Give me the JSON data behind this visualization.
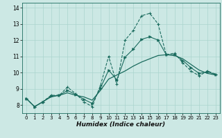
{
  "title": "",
  "xlabel": "Humidex (Indice chaleur)",
  "background_color": "#cce8e4",
  "line_color": "#1a6b5e",
  "grid_color": "#aad4ce",
  "xlim": [
    -0.5,
    23.5
  ],
  "ylim": [
    7.5,
    14.3
  ],
  "x_ticks": [
    0,
    1,
    2,
    3,
    4,
    5,
    6,
    7,
    8,
    9,
    10,
    11,
    12,
    13,
    14,
    15,
    16,
    17,
    18,
    19,
    20,
    21,
    22,
    23
  ],
  "y_ticks": [
    8,
    9,
    10,
    11,
    12,
    13,
    14
  ],
  "series_main": [
    8.4,
    7.9,
    8.2,
    8.6,
    8.6,
    9.1,
    8.7,
    8.2,
    7.9,
    9.2,
    11.0,
    9.3,
    12.0,
    12.6,
    13.5,
    13.65,
    13.0,
    11.1,
    11.2,
    10.6,
    10.1,
    9.8,
    10.1,
    9.9
  ],
  "series_smooth": [
    8.4,
    7.9,
    8.2,
    8.5,
    8.6,
    8.75,
    8.6,
    8.5,
    8.3,
    8.9,
    9.6,
    9.85,
    10.1,
    10.4,
    10.65,
    10.85,
    11.05,
    11.1,
    11.05,
    10.85,
    10.5,
    10.15,
    9.95,
    9.85
  ],
  "series_mid": [
    8.4,
    7.9,
    8.2,
    8.55,
    8.6,
    8.9,
    8.65,
    8.35,
    8.1,
    9.05,
    10.15,
    9.55,
    10.95,
    11.45,
    12.05,
    12.2,
    12.0,
    11.1,
    11.1,
    10.75,
    10.3,
    9.95,
    10.05,
    9.87
  ]
}
